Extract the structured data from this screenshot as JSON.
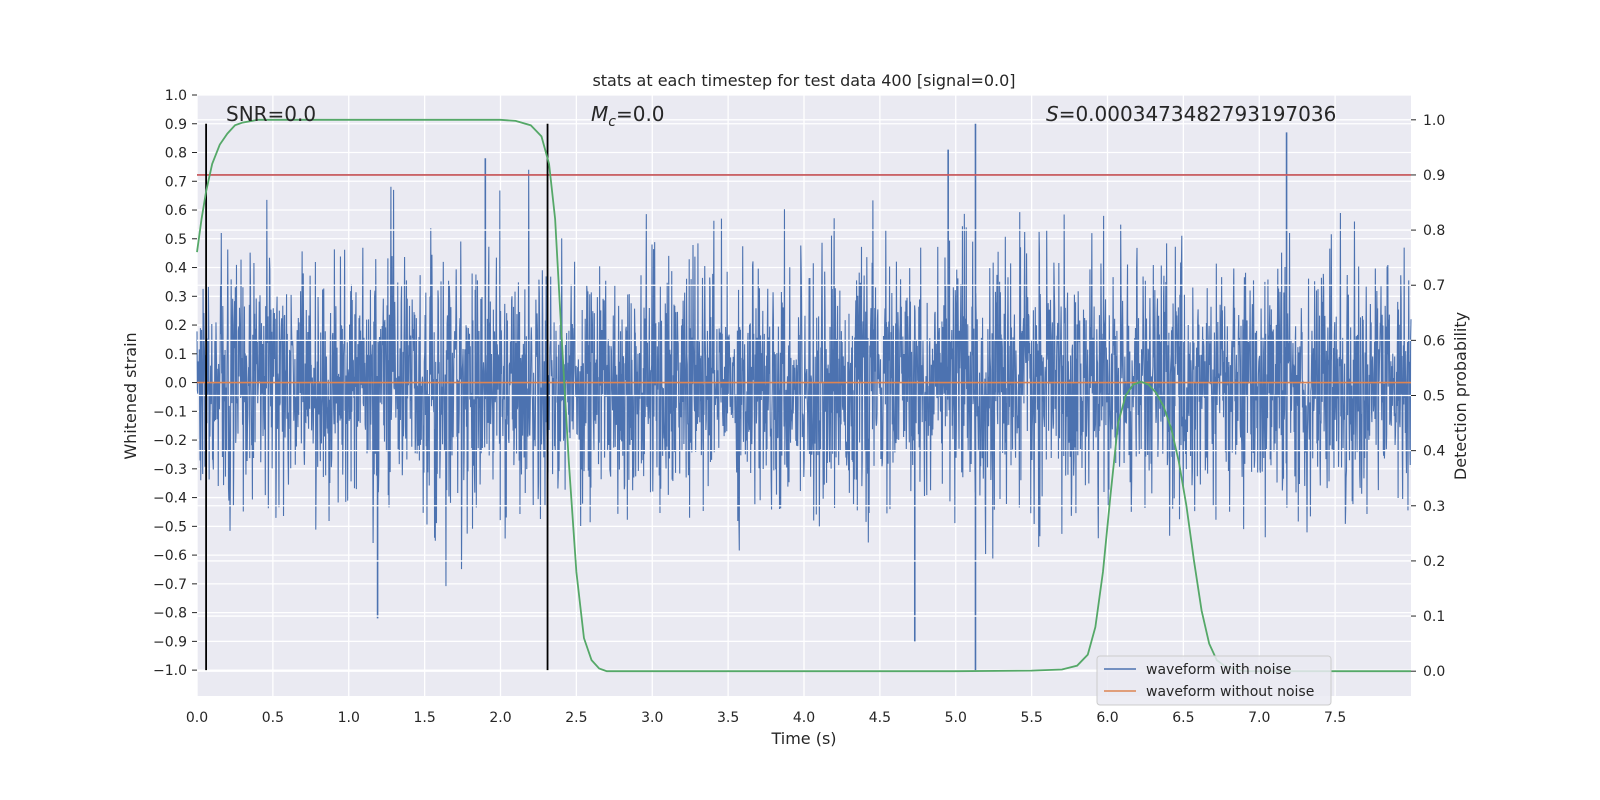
{
  "chart_data": {
    "type": "line",
    "title": "stats at each timestep for test data 400 [signal=0.0]",
    "xlabel": "Time (s)",
    "ylabel": "Whitened strain",
    "y2label": "Detection probability",
    "xlim": [
      0.0,
      8.0
    ],
    "ylim": [
      -1.09,
      1.0
    ],
    "y2lim": [
      -0.045,
      1.045
    ],
    "xticks": [
      "0.0",
      "0.5",
      "1.0",
      "1.5",
      "2.0",
      "2.5",
      "3.0",
      "3.5",
      "4.0",
      "4.5",
      "5.0",
      "5.5",
      "6.0",
      "6.5",
      "7.0",
      "7.5"
    ],
    "xtick_values": [
      0.0,
      0.5,
      1.0,
      1.5,
      2.0,
      2.5,
      3.0,
      3.5,
      4.0,
      4.5,
      5.0,
      5.5,
      6.0,
      6.5,
      7.0,
      7.5
    ],
    "yticks": [
      "1.0",
      "0.9",
      "0.8",
      "0.7",
      "0.6",
      "0.5",
      "0.4",
      "0.3",
      "0.2",
      "0.1",
      "0.0",
      "−0.1",
      "−0.2",
      "−0.3",
      "−0.4",
      "−0.5",
      "−0.6",
      "−0.7",
      "−0.8",
      "−0.9",
      "−1.0"
    ],
    "ytick_values": [
      1.0,
      0.9,
      0.8,
      0.7,
      0.6,
      0.5,
      0.4,
      0.3,
      0.2,
      0.1,
      0.0,
      -0.1,
      -0.2,
      -0.3,
      -0.4,
      -0.5,
      -0.6,
      -0.7,
      -0.8,
      -0.9,
      -1.0
    ],
    "y2ticks": [
      "1.0",
      "0.9",
      "0.8",
      "0.7",
      "0.6",
      "0.5",
      "0.4",
      "0.3",
      "0.2",
      "0.1",
      "0.0"
    ],
    "y2tick_values": [
      1.0,
      0.9,
      0.8,
      0.7,
      0.6,
      0.5,
      0.4,
      0.3,
      0.2,
      0.1,
      0.0
    ],
    "annotations": {
      "snr": "SNR=0.0",
      "mc_symbol": "M",
      "mc_sub": "c",
      "mc_value": "=0.0",
      "s_symbol": "S",
      "s_value": "=0.0003473482793197036"
    },
    "legend": [
      {
        "label": "waveform with noise",
        "color": "#4c72b0"
      },
      {
        "label": "waveform without noise",
        "color": "#dd8452"
      }
    ],
    "legend_position": "lower-right",
    "series": [
      {
        "name": "waveform with noise",
        "color": "#4c72b0",
        "axis": "left",
        "kind": "dense noisy strain (sampled)",
        "x_range": [
          0.0,
          8.0
        ],
        "std": 0.21,
        "peaks": [
          {
            "x": 5.13,
            "y": 0.9
          },
          {
            "x": 7.18,
            "y": 0.87
          },
          {
            "x": 4.95,
            "y": 0.81
          },
          {
            "x": 1.9,
            "y": 0.78
          },
          {
            "x": 5.13,
            "y": -1.0
          },
          {
            "x": 4.73,
            "y": -0.9
          },
          {
            "x": 1.19,
            "y": -0.82
          }
        ]
      },
      {
        "name": "waveform without noise",
        "color": "#dd8452",
        "axis": "left",
        "x": [
          0.0,
          8.0
        ],
        "y": [
          0.0,
          0.0
        ]
      },
      {
        "name": "detection probability",
        "color": "#55a868",
        "axis": "right",
        "x": [
          0.0,
          0.03,
          0.06,
          0.1,
          0.15,
          0.2,
          0.25,
          0.3,
          0.4,
          0.5,
          1.0,
          1.5,
          2.0,
          2.1,
          2.2,
          2.27,
          2.32,
          2.36,
          2.4,
          2.45,
          2.5,
          2.55,
          2.6,
          2.65,
          2.7,
          3.0,
          4.0,
          5.0,
          5.5,
          5.7,
          5.8,
          5.87,
          5.92,
          5.97,
          6.02,
          6.07,
          6.12,
          6.17,
          6.22,
          6.27,
          6.32,
          6.37,
          6.42,
          6.47,
          6.52,
          6.57,
          6.62,
          6.67,
          6.72,
          6.77,
          6.82,
          6.9,
          7.0,
          8.0
        ],
        "y": [
          0.76,
          0.82,
          0.87,
          0.92,
          0.955,
          0.975,
          0.99,
          0.995,
          1.0,
          1.0,
          1.0,
          1.0,
          1.0,
          0.998,
          0.99,
          0.97,
          0.92,
          0.82,
          0.62,
          0.38,
          0.18,
          0.06,
          0.02,
          0.005,
          0.0,
          0.0,
          0.0,
          0.0,
          0.001,
          0.003,
          0.01,
          0.03,
          0.08,
          0.18,
          0.32,
          0.45,
          0.5,
          0.52,
          0.525,
          0.52,
          0.505,
          0.48,
          0.44,
          0.38,
          0.3,
          0.2,
          0.11,
          0.05,
          0.02,
          0.01,
          0.005,
          0.0,
          0.0,
          0.0
        ]
      }
    ],
    "hlines": [
      {
        "name": "threshold",
        "axis": "right",
        "y": 0.9,
        "color": "#c44e52"
      }
    ],
    "vlines": [
      {
        "x": 0.06,
        "ymin": -1.0,
        "ymax": 0.9,
        "color": "#000000"
      },
      {
        "x": 2.31,
        "ymin": -1.0,
        "ymax": 0.9,
        "color": "#000000"
      }
    ]
  }
}
